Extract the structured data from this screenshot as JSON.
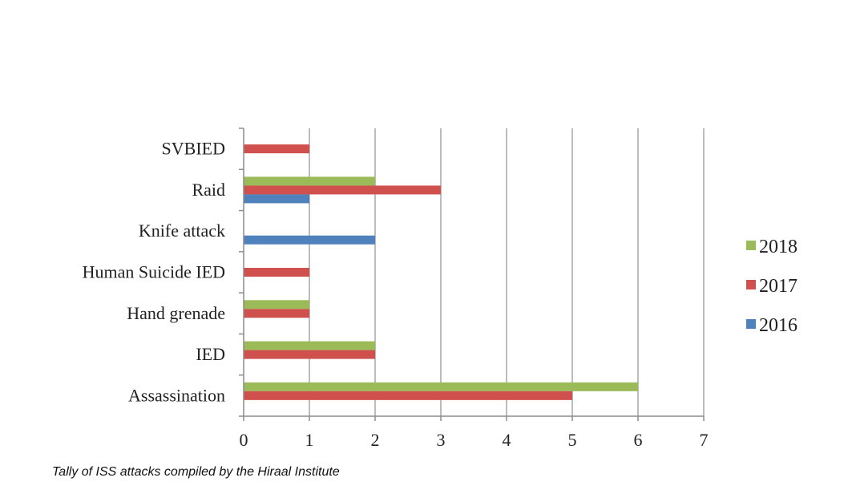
{
  "chart_data": {
    "type": "bar",
    "orientation": "horizontal",
    "categories": [
      "SVBIED",
      "Raid",
      "Knife attack",
      "Human Suicide IED",
      "Hand grenade",
      "IED",
      "Assassination"
    ],
    "series": [
      {
        "name": "2018",
        "color": "#9bbb59",
        "values": [
          0,
          2,
          0,
          0,
          1,
          2,
          6
        ]
      },
      {
        "name": "2017",
        "color": "#d0504d",
        "values": [
          1,
          3,
          0,
          1,
          1,
          2,
          5
        ]
      },
      {
        "name": "2016",
        "color": "#4f81bd",
        "values": [
          0,
          1,
          2,
          0,
          0,
          0,
          0
        ]
      }
    ],
    "xlim": [
      0,
      7
    ],
    "xticks": [
      "0",
      "1",
      "2",
      "3",
      "4",
      "5",
      "6",
      "7"
    ],
    "grid": true,
    "legend_position": "right",
    "legend_order": [
      "2018",
      "2017",
      "2016"
    ],
    "title": "",
    "xlabel": "",
    "ylabel": ""
  },
  "caption": "Tally of ISS attacks compiled by the Hiraal Institute",
  "colors": {
    "grid": "#a6a6a6",
    "axis": "#8c8c8c",
    "text": "#222222"
  }
}
